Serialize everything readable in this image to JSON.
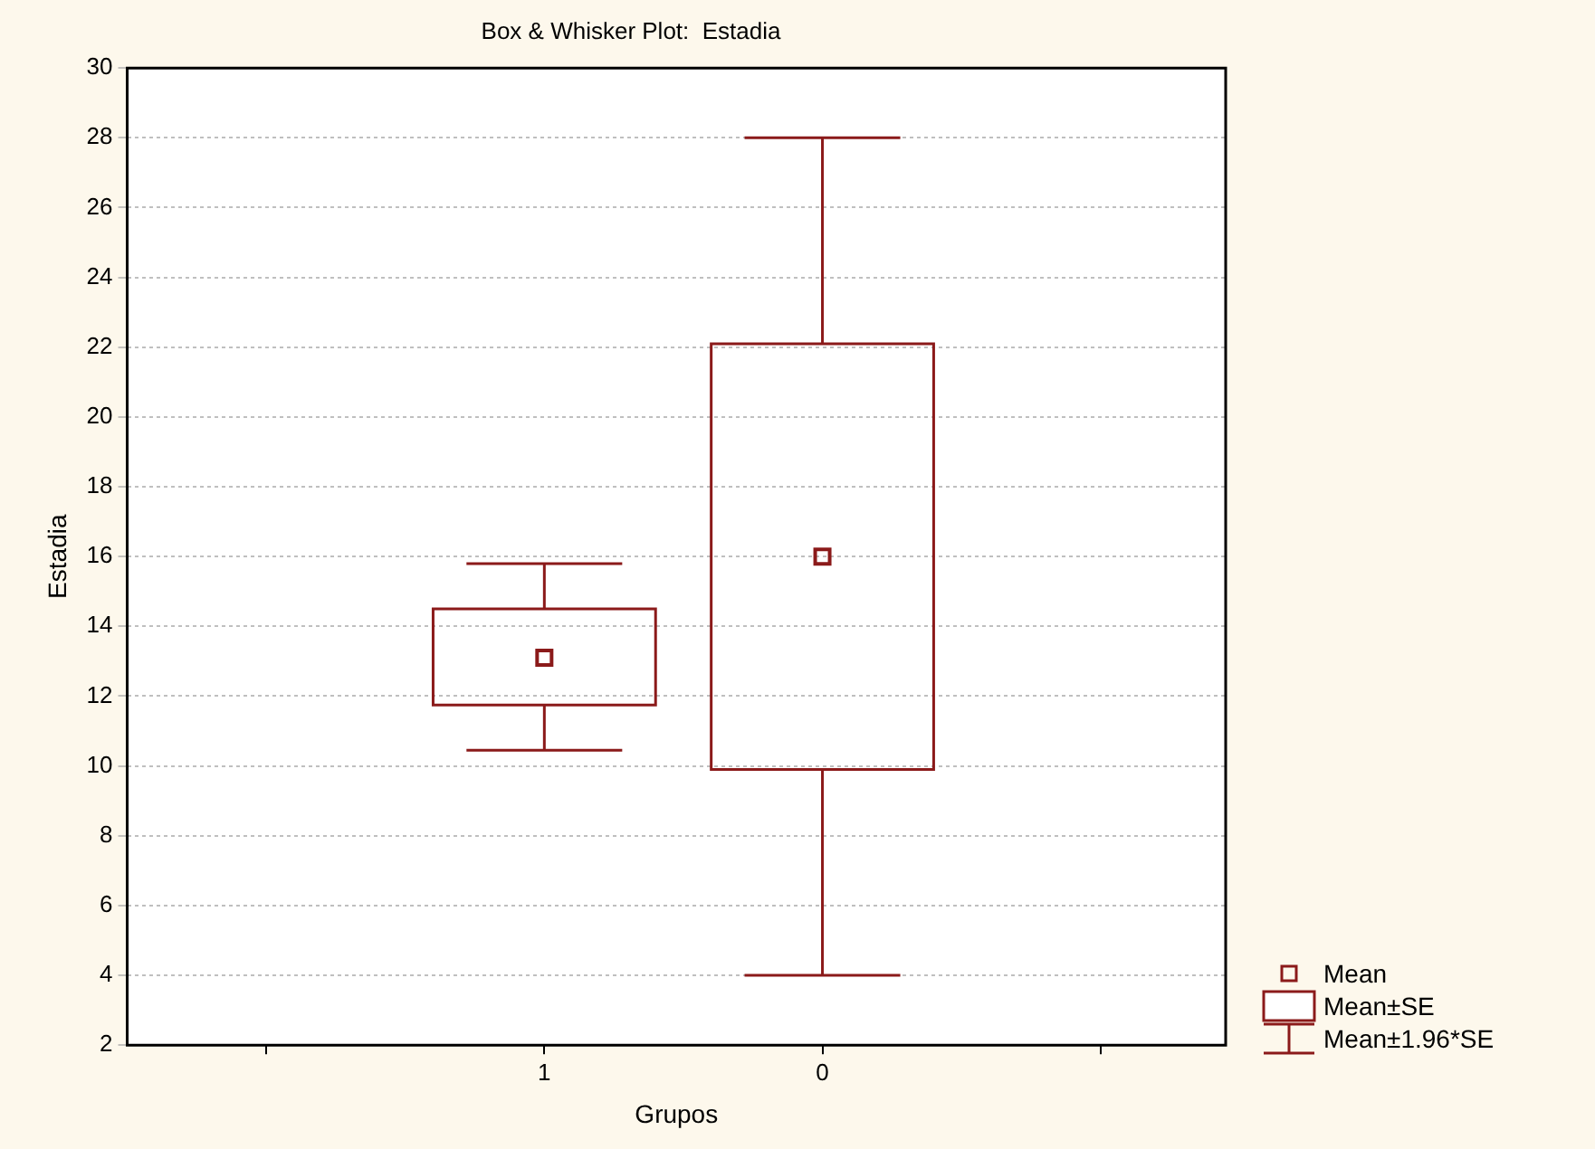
{
  "chart_data": {
    "type": "box",
    "title": "Box & Whisker Plot:  Estadia",
    "xlabel": "Grupos",
    "ylabel": "Estadia",
    "categories": [
      "1",
      "0"
    ],
    "color": "#8b1a1a",
    "boxes": [
      {
        "low": 10.45,
        "q1": 11.75,
        "mean": 13.1,
        "q3": 14.5,
        "high": 15.8
      },
      {
        "low": 4,
        "q1": 9.9,
        "mean": 16,
        "q3": 22.1,
        "high": 28
      }
    ],
    "ylim": [
      2,
      30
    ],
    "yticks": [
      2,
      4,
      6,
      8,
      10,
      12,
      14,
      16,
      18,
      20,
      22,
      24,
      26,
      28,
      30
    ],
    "grid": "y",
    "annotations": [
      "Mean",
      "Mean±SE",
      "Mean±1.96*SE"
    ]
  }
}
